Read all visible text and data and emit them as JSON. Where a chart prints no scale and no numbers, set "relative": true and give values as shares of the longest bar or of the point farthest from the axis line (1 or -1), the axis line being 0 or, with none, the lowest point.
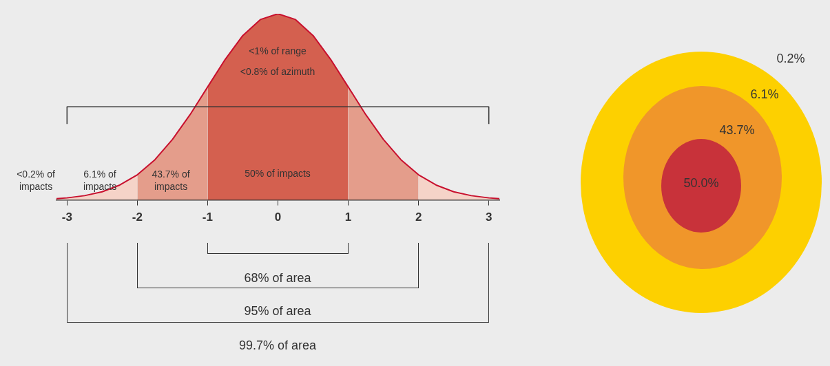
{
  "chart_data": [
    {
      "type": "area",
      "relative": true,
      "xlim": [
        -3.15,
        3.15
      ],
      "xticks": [
        -3,
        -2,
        -1,
        0,
        1,
        2,
        3
      ],
      "tick_labels": "x",
      "grid": false,
      "legend": false,
      "series": [
        {
          "color": "#f5d3c8",
          "x": [
            -3.15,
            -3,
            -2.75,
            -2.5,
            -2.25,
            -2
          ],
          "values": [
            0.007,
            0.011,
            0.023,
            0.044,
            0.08,
            0.135
          ]
        },
        {
          "color": "#e49d8b",
          "x": [
            -2,
            -1.75,
            -1.5,
            -1.25,
            -1
          ],
          "values": [
            0.135,
            0.216,
            0.325,
            0.458,
            0.607
          ]
        },
        {
          "color": "#d4604f",
          "x": [
            -1,
            -0.75,
            -0.5,
            -0.25,
            0,
            0.25,
            0.5,
            0.75,
            1
          ],
          "values": [
            0.607,
            0.755,
            0.883,
            0.969,
            1,
            0.969,
            0.883,
            0.755,
            0.607
          ]
        },
        {
          "color": "#e49d8b",
          "x": [
            1,
            1.25,
            1.5,
            1.75,
            2
          ],
          "values": [
            0.607,
            0.458,
            0.325,
            0.216,
            0.135
          ]
        },
        {
          "color": "#f5d3c8",
          "x": [
            2,
            2.25,
            2.5,
            2.75,
            3,
            3.15
          ],
          "values": [
            0.135,
            0.08,
            0.044,
            0.023,
            0.011,
            0.007
          ]
        },
        {
          "type": "line",
          "color": "#c8102e",
          "x": [
            -3.15,
            -3,
            -2.75,
            -2.5,
            -2.25,
            -2,
            -1.75,
            -1.5,
            -1.25,
            -1,
            -0.75,
            -0.5,
            -0.25,
            0,
            0.25,
            0.5,
            0.75,
            1,
            1.25,
            1.5,
            1.75,
            2,
            2.25,
            2.5,
            2.75,
            3,
            3.15
          ],
          "values": [
            0.007,
            0.011,
            0.023,
            0.044,
            0.08,
            0.135,
            0.216,
            0.325,
            0.458,
            0.607,
            0.755,
            0.883,
            0.969,
            1,
            0.969,
            0.883,
            0.755,
            0.607,
            0.458,
            0.325,
            0.216,
            0.135,
            0.08,
            0.044,
            0.023,
            0.011,
            0.007
          ]
        }
      ],
      "ref_lines": [
        {
          "axis": "y",
          "value": 0.5,
          "color": "#333333"
        }
      ],
      "annotations": [
        "<1% of range",
        "<0.8% of azimuth",
        "50% of impacts",
        "43.7% of impacts",
        "6.1% of impacts",
        "<0.2% of impacts",
        "68% of area",
        "95% of area",
        "99.7% of area"
      ]
    },
    {
      "type": "other",
      "annotations": [
        "50.0%",
        "43.7%",
        "6.1%",
        "0.2%"
      ]
    }
  ]
}
